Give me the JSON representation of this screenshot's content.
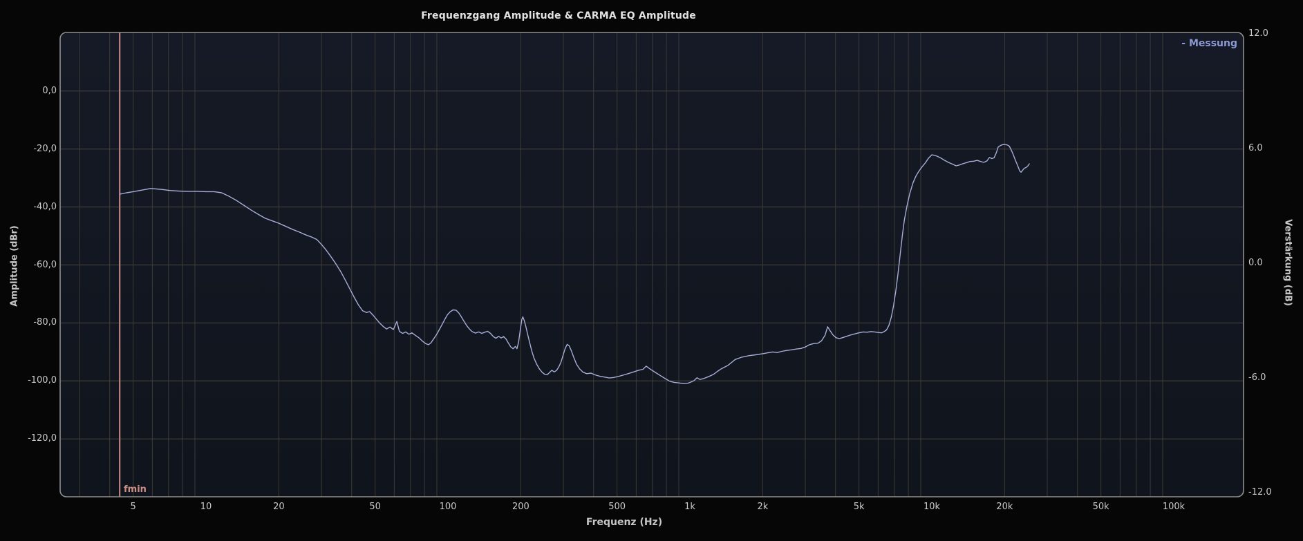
{
  "app": {
    "title": "Frequenzgang Amplitude & CARMA EQ Amplitude"
  },
  "colors": {
    "background": "#060606",
    "plot_background_top": "#161a26",
    "plot_background_bottom": "#10141c",
    "plot_border": "#8f8f8f",
    "grid_vertical": "#3d3b37",
    "grid_horizontal": "#4a4740",
    "curve": "#a7aed8",
    "legend_text": "#8b9ad2",
    "fmin_line": "#c98f8b",
    "tick_text": "#cbcbcb",
    "title_text": "#e2e2e2"
  },
  "chart_data": {
    "type": "line",
    "title": "Frequenzgang Amplitude & CARMA EQ Amplitude",
    "xlabel": "Frequenz (Hz)",
    "ylabel_left": "Amplitude (dBr)",
    "ylabel_right": "Verstärkung (dB)",
    "x_scale": "log",
    "xlim": [
      2.5,
      193000
    ],
    "ylim_left": [
      -140,
      20
    ],
    "ylim_right": [
      -12.2,
      12.1
    ],
    "grid": true,
    "legend_position": "top-right",
    "legend": [
      {
        "label": "- Messung"
      }
    ],
    "annotation": {
      "label": "fmin",
      "freq_hz": 4.4
    },
    "x_ticks": [
      {
        "f": 5,
        "label": "5"
      },
      {
        "f": 10,
        "label": "10"
      },
      {
        "f": 20,
        "label": "20"
      },
      {
        "f": 50,
        "label": "50"
      },
      {
        "f": 100,
        "label": "100"
      },
      {
        "f": 200,
        "label": "200"
      },
      {
        "f": 500,
        "label": "500"
      },
      {
        "f": 1000,
        "label": "1k"
      },
      {
        "f": 2000,
        "label": "2k"
      },
      {
        "f": 5000,
        "label": "5k"
      },
      {
        "f": 10000,
        "label": "10k"
      },
      {
        "f": 20000,
        "label": "20k"
      },
      {
        "f": 50000,
        "label": "50k"
      },
      {
        "f": 100000,
        "label": "100k"
      }
    ],
    "y_ticks_left": [
      {
        "v": 0,
        "label": "0,0"
      },
      {
        "v": -20,
        "label": "-20,0"
      },
      {
        "v": -40,
        "label": "-40,0"
      },
      {
        "v": -60,
        "label": "-60,0"
      },
      {
        "v": -80,
        "label": "-80,0"
      },
      {
        "v": -100,
        "label": "-100,0"
      },
      {
        "v": -120,
        "label": "-120,0"
      }
    ],
    "y_ticks_right": [
      {
        "v": 12,
        "label": "12.0"
      },
      {
        "v": 6,
        "label": "6.0"
      },
      {
        "v": 0,
        "label": "0.0"
      },
      {
        "v": -6,
        "label": "-6.0"
      },
      {
        "v": -12,
        "label": "-12.0"
      }
    ],
    "series": [
      {
        "name": "Messung",
        "unit_x": "Hz",
        "unit_y": "dBr",
        "points": [
          [
            4.4,
            -35.6
          ],
          [
            4.7,
            -35.1
          ],
          [
            5.0,
            -34.7
          ],
          [
            5.5,
            -34.1
          ],
          [
            5.9,
            -33.6
          ],
          [
            6.5,
            -33.9
          ],
          [
            7.1,
            -34.3
          ],
          [
            7.7,
            -34.5
          ],
          [
            8.4,
            -34.6
          ],
          [
            9.2,
            -34.6
          ],
          [
            10,
            -34.7
          ],
          [
            10.8,
            -34.7
          ],
          [
            11.6,
            -35.1
          ],
          [
            12.4,
            -36.2
          ],
          [
            13.4,
            -37.8
          ],
          [
            14.4,
            -39.5
          ],
          [
            15.4,
            -41.1
          ],
          [
            16.5,
            -42.6
          ],
          [
            17.6,
            -43.9
          ],
          [
            18.8,
            -44.8
          ],
          [
            20,
            -45.6
          ],
          [
            21.4,
            -46.7
          ],
          [
            22.9,
            -47.8
          ],
          [
            24.4,
            -48.7
          ],
          [
            26,
            -49.7
          ],
          [
            27.4,
            -50.4
          ],
          [
            28.7,
            -51.2
          ],
          [
            30,
            -52.9
          ],
          [
            31.4,
            -54.9
          ],
          [
            32.9,
            -57.2
          ],
          [
            34.4,
            -59.6
          ],
          [
            36,
            -62.2
          ],
          [
            37.6,
            -65.1
          ],
          [
            39.3,
            -68.2
          ],
          [
            41,
            -71.2
          ],
          [
            42.7,
            -73.8
          ],
          [
            44.4,
            -75.8
          ],
          [
            46,
            -76.4
          ],
          [
            47.5,
            -76.1
          ],
          [
            49,
            -77.3
          ],
          [
            50.6,
            -78.7
          ],
          [
            52.3,
            -80.1
          ],
          [
            54,
            -81.2
          ],
          [
            55.8,
            -82.1
          ],
          [
            57.6,
            -81.4
          ],
          [
            59.5,
            -82.3
          ],
          [
            61.5,
            -79.5
          ],
          [
            63,
            -82.9
          ],
          [
            65,
            -83.6
          ],
          [
            67,
            -83.1
          ],
          [
            69,
            -83.9
          ],
          [
            71,
            -83.4
          ],
          [
            73.4,
            -84.3
          ],
          [
            75.8,
            -85.1
          ],
          [
            78.3,
            -86.2
          ],
          [
            80.8,
            -87.1
          ],
          [
            83,
            -87.5
          ],
          [
            85,
            -86.9
          ],
          [
            87,
            -85.7
          ],
          [
            89.5,
            -84.2
          ],
          [
            92,
            -82.4
          ],
          [
            94.5,
            -80.6
          ],
          [
            97,
            -78.8
          ],
          [
            99.5,
            -77.2
          ],
          [
            102,
            -76.2
          ],
          [
            105,
            -75.5
          ],
          [
            108,
            -75.6
          ],
          [
            111,
            -76.6
          ],
          [
            114,
            -78.1
          ],
          [
            117,
            -79.7
          ],
          [
            120,
            -81.1
          ],
          [
            123,
            -82.2
          ],
          [
            126,
            -83.0
          ],
          [
            130,
            -83.5
          ],
          [
            134,
            -83.1
          ],
          [
            138,
            -83.6
          ],
          [
            142,
            -83.2
          ],
          [
            146,
            -82.9
          ],
          [
            150,
            -83.6
          ],
          [
            154,
            -84.7
          ],
          [
            158,
            -85.3
          ],
          [
            162,
            -84.6
          ],
          [
            166,
            -85.2
          ],
          [
            170,
            -84.7
          ],
          [
            174,
            -85.6
          ],
          [
            178,
            -87.0
          ],
          [
            182,
            -88.3
          ],
          [
            186,
            -88.9
          ],
          [
            190,
            -88.1
          ],
          [
            193,
            -88.9
          ],
          [
            196,
            -86.5
          ],
          [
            199,
            -82.5
          ],
          [
            202,
            -78.8
          ],
          [
            204,
            -77.9
          ],
          [
            207,
            -79.3
          ],
          [
            210,
            -81.3
          ],
          [
            214,
            -84.2
          ],
          [
            218,
            -87.0
          ],
          [
            222,
            -89.6
          ],
          [
            227,
            -92.2
          ],
          [
            233,
            -94.3
          ],
          [
            239,
            -95.9
          ],
          [
            245,
            -97.0
          ],
          [
            251,
            -97.7
          ],
          [
            257,
            -97.9
          ],
          [
            263,
            -97.1
          ],
          [
            269,
            -96.3
          ],
          [
            275,
            -96.9
          ],
          [
            281,
            -96.4
          ],
          [
            287,
            -95.2
          ],
          [
            293,
            -93.6
          ],
          [
            299,
            -91.2
          ],
          [
            305,
            -88.9
          ],
          [
            311,
            -87.4
          ],
          [
            317,
            -87.9
          ],
          [
            323,
            -89.4
          ],
          [
            331,
            -91.8
          ],
          [
            340,
            -94.2
          ],
          [
            350,
            -95.8
          ],
          [
            362,
            -97.0
          ],
          [
            375,
            -97.5
          ],
          [
            390,
            -97.3
          ],
          [
            405,
            -97.9
          ],
          [
            425,
            -98.4
          ],
          [
            445,
            -98.7
          ],
          [
            465,
            -99.0
          ],
          [
            485,
            -98.8
          ],
          [
            510,
            -98.4
          ],
          [
            535,
            -97.9
          ],
          [
            560,
            -97.4
          ],
          [
            590,
            -96.8
          ],
          [
            615,
            -96.3
          ],
          [
            640,
            -96.0
          ],
          [
            660,
            -94.9
          ],
          [
            680,
            -95.7
          ],
          [
            705,
            -96.6
          ],
          [
            730,
            -97.4
          ],
          [
            760,
            -98.3
          ],
          [
            790,
            -99.2
          ],
          [
            825,
            -100.1
          ],
          [
            860,
            -100.5
          ],
          [
            900,
            -100.7
          ],
          [
            940,
            -100.9
          ],
          [
            980,
            -100.8
          ],
          [
            1010,
            -100.4
          ],
          [
            1040,
            -99.9
          ],
          [
            1070,
            -98.9
          ],
          [
            1100,
            -99.5
          ],
          [
            1140,
            -99.2
          ],
          [
            1180,
            -98.7
          ],
          [
            1220,
            -98.2
          ],
          [
            1260,
            -97.6
          ],
          [
            1300,
            -96.7
          ],
          [
            1350,
            -95.8
          ],
          [
            1440,
            -94.6
          ],
          [
            1540,
            -92.6
          ],
          [
            1640,
            -91.8
          ],
          [
            1750,
            -91.3
          ],
          [
            1870,
            -91.0
          ],
          [
            2000,
            -90.6
          ],
          [
            2100,
            -90.3
          ],
          [
            2200,
            -90.0
          ],
          [
            2300,
            -90.2
          ],
          [
            2400,
            -89.8
          ],
          [
            2500,
            -89.5
          ],
          [
            2620,
            -89.3
          ],
          [
            2750,
            -89.0
          ],
          [
            2880,
            -88.8
          ],
          [
            3000,
            -88.3
          ],
          [
            3120,
            -87.5
          ],
          [
            3250,
            -87.1
          ],
          [
            3380,
            -87.0
          ],
          [
            3500,
            -86.2
          ],
          [
            3620,
            -84.3
          ],
          [
            3710,
            -81.3
          ],
          [
            3800,
            -82.7
          ],
          [
            3900,
            -84.1
          ],
          [
            4020,
            -85.1
          ],
          [
            4150,
            -85.4
          ],
          [
            4300,
            -85.0
          ],
          [
            4450,
            -84.6
          ],
          [
            4600,
            -84.2
          ],
          [
            4800,
            -83.8
          ],
          [
            5000,
            -83.4
          ],
          [
            5200,
            -83.1
          ],
          [
            5400,
            -83.2
          ],
          [
            5600,
            -83.0
          ],
          [
            5800,
            -83.1
          ],
          [
            6000,
            -83.3
          ],
          [
            6200,
            -83.4
          ],
          [
            6350,
            -83.0
          ],
          [
            6500,
            -82.4
          ],
          [
            6650,
            -80.8
          ],
          [
            6800,
            -78.0
          ],
          [
            6950,
            -74.0
          ],
          [
            7100,
            -69.0
          ],
          [
            7250,
            -63.0
          ],
          [
            7400,
            -56.5
          ],
          [
            7550,
            -50.0
          ],
          [
            7700,
            -44.5
          ],
          [
            7900,
            -39.5
          ],
          [
            8100,
            -35.5
          ],
          [
            8350,
            -31.8
          ],
          [
            8600,
            -29.3
          ],
          [
            8850,
            -27.6
          ],
          [
            9100,
            -26.2
          ],
          [
            9400,
            -24.8
          ],
          [
            9700,
            -23.1
          ],
          [
            10000,
            -22.0
          ],
          [
            10300,
            -22.2
          ],
          [
            10600,
            -22.6
          ],
          [
            10900,
            -23.1
          ],
          [
            11300,
            -23.9
          ],
          [
            11700,
            -24.6
          ],
          [
            12100,
            -25.1
          ],
          [
            12600,
            -25.8
          ],
          [
            13000,
            -25.5
          ],
          [
            13400,
            -25.1
          ],
          [
            13900,
            -24.7
          ],
          [
            14400,
            -24.3
          ],
          [
            14900,
            -24.2
          ],
          [
            15400,
            -23.9
          ],
          [
            15900,
            -24.3
          ],
          [
            16400,
            -24.6
          ],
          [
            16900,
            -24.1
          ],
          [
            17300,
            -22.9
          ],
          [
            17700,
            -23.3
          ],
          [
            18100,
            -23.0
          ],
          [
            18500,
            -21.2
          ],
          [
            18800,
            -19.3
          ],
          [
            19200,
            -18.8
          ],
          [
            19600,
            -18.5
          ],
          [
            20000,
            -18.4
          ],
          [
            20500,
            -18.6
          ],
          [
            20900,
            -19.0
          ],
          [
            21300,
            -20.3
          ],
          [
            21600,
            -21.5
          ],
          [
            21900,
            -22.8
          ],
          [
            22200,
            -24.0
          ],
          [
            22500,
            -25.2
          ],
          [
            22800,
            -26.4
          ],
          [
            23100,
            -27.6
          ],
          [
            23400,
            -28.0
          ],
          [
            23700,
            -27.4
          ],
          [
            24000,
            -26.8
          ],
          [
            24300,
            -26.5
          ],
          [
            24700,
            -26.2
          ],
          [
            25000,
            -25.7
          ],
          [
            25300,
            -25.1
          ]
        ]
      }
    ]
  }
}
